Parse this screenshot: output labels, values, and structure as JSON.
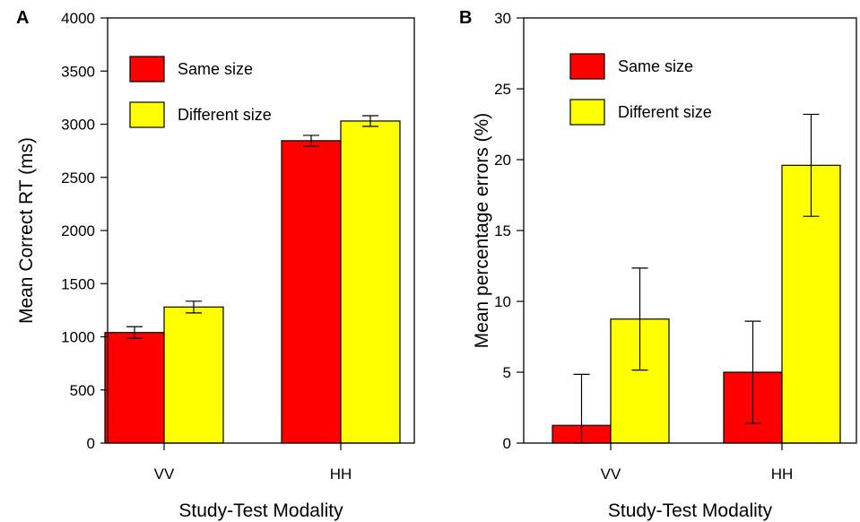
{
  "chart_data": [
    {
      "panel_label": "A",
      "type": "bar",
      "categories": [
        "VV",
        "HH"
      ],
      "series": [
        {
          "name": "Same size",
          "values": [
            1040,
            2845
          ],
          "errors": [
            55,
            50
          ]
        },
        {
          "name": "Different size",
          "values": [
            1280,
            3030
          ],
          "errors": [
            55,
            50
          ]
        }
      ],
      "ylabel": "Mean Correct RT (ms)",
      "xlabel": "Study-Test Modality",
      "ylim": [
        0,
        4000
      ],
      "yticks": [
        0,
        500,
        1000,
        1500,
        2000,
        2500,
        3000,
        3500,
        4000
      ],
      "legend_position": "top-left",
      "grid": false
    },
    {
      "panel_label": "B",
      "type": "bar",
      "categories": [
        "VV",
        "HH"
      ],
      "series": [
        {
          "name": "Same size",
          "values": [
            1.25,
            5.0
          ],
          "errors": [
            3.6,
            3.6
          ]
        },
        {
          "name": "Different size",
          "values": [
            8.75,
            19.6
          ],
          "errors": [
            3.6,
            3.6
          ]
        }
      ],
      "ylabel": "Mean percentage errors (%)",
      "xlabel": "Study-Test Modality",
      "ylim": [
        0,
        30
      ],
      "yticks": [
        0,
        5,
        10,
        15,
        20,
        25,
        30
      ],
      "legend_position": "top-left",
      "grid": false
    }
  ],
  "colors": {
    "Same size": "#ff0000",
    "Different size": "#ffff00",
    "axis": "#000000"
  }
}
